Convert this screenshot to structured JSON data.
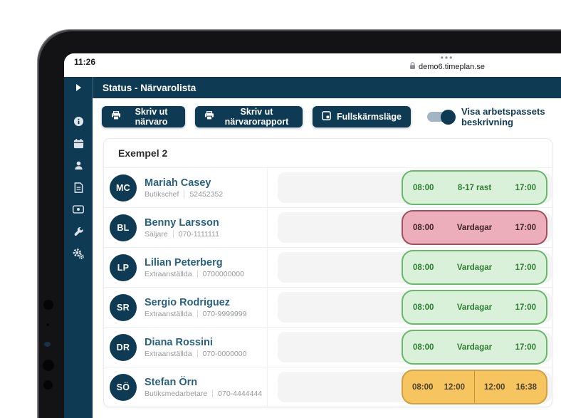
{
  "device": {
    "clock": "11:26",
    "tab_dots": "•••",
    "url": "demo6.timeplan.se"
  },
  "app": {
    "title": "Status - Närvarolista"
  },
  "toolbar": {
    "print_attendance": "Skriv ut närvaro",
    "print_report": "Skriv ut närvarorapport",
    "fullscreen": "Fullskärmsläge",
    "toggle_label": "Visa arbetspassets beskrivning",
    "toggle_on": true
  },
  "group": {
    "title": "Exempel 2"
  },
  "employees": [
    {
      "initials": "MC",
      "name": "Mariah Casey",
      "role": "Butikschef",
      "phone": "52452352",
      "shift": {
        "type": "green",
        "start": "08:00",
        "label": "8-17 rast",
        "end": "17:00"
      }
    },
    {
      "initials": "BL",
      "name": "Benny Larsson",
      "role": "Säljare",
      "phone": "070-1111111",
      "shift": {
        "type": "red",
        "start": "08:00",
        "label": "Vardagar",
        "end": "17:00"
      }
    },
    {
      "initials": "LP",
      "name": "Lilian Peterberg",
      "role": "Extraanställda",
      "phone": "0700000000",
      "shift": {
        "type": "green",
        "start": "08:00",
        "label": "Vardagar",
        "end": "17:00"
      }
    },
    {
      "initials": "SR",
      "name": "Sergio Rodriguez",
      "role": "Extraanställda",
      "phone": "070-9999999",
      "shift": {
        "type": "green",
        "start": "08:00",
        "label": "Vardagar",
        "end": "17:00"
      }
    },
    {
      "initials": "DR",
      "name": "Diana Rossini",
      "role": "Extraanställda",
      "phone": "070-0000000",
      "shift": {
        "type": "green",
        "start": "08:00",
        "label": "Vardagar",
        "end": "17:00"
      }
    },
    {
      "initials": "SÖ",
      "name": "Stefan Örn",
      "role": "Butiksmedarbetare",
      "phone": "070-4444444",
      "shift": {
        "type": "orange",
        "segments": [
          {
            "start": "08:00",
            "end": "12:00"
          },
          {
            "start": "12:00",
            "end": "16:38"
          }
        ]
      }
    }
  ],
  "sidebar_icons": [
    "info-icon",
    "calendar-icon",
    "person-icon",
    "document-icon",
    "money-icon",
    "wrench-icon",
    "settings-icon"
  ],
  "colors": {
    "navy": "#0e3a53",
    "name_blue": "#28617f",
    "shift_green_bg": "#d9f1d8",
    "shift_green_border": "#68b96a",
    "shift_green_text": "#2e7d33",
    "shift_red_bg": "#ecaebb",
    "shift_red_border": "#a34f60",
    "shift_red_text": "#3e2227",
    "shift_orange_bg": "#f6c55f",
    "shift_orange_border": "#cfa045",
    "shift_orange_text": "#4d4434"
  }
}
